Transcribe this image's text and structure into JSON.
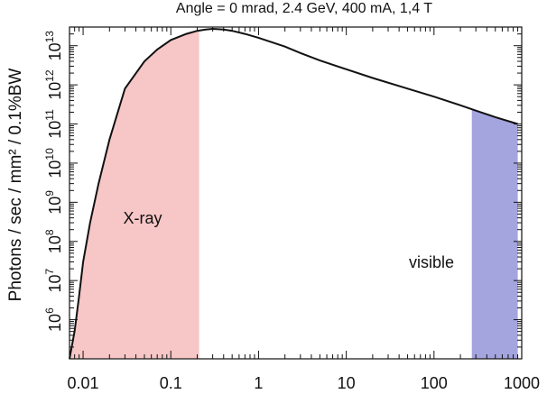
{
  "chart_data": {
    "type": "area",
    "title": "Angle = 0 mrad, 2.4 GeV, 400 mA, 1,4 T",
    "xlabel": "",
    "ylabel": "Photons / sec /  mm² / 0.1%BW",
    "x_scale": "log",
    "y_scale": "log",
    "xlim": [
      0.007,
      1000
    ],
    "ylim": [
      100000,
      30000000000000
    ],
    "x_ticks": [
      {
        "value": 0.01,
        "label": "0.01"
      },
      {
        "value": 0.1,
        "label": "0.1"
      },
      {
        "value": 1,
        "label": "1"
      },
      {
        "value": 10,
        "label": "10"
      },
      {
        "value": 100,
        "label": "100"
      },
      {
        "value": 1000,
        "label": "1000"
      }
    ],
    "y_ticks": [
      {
        "value": 1000000,
        "base": "10",
        "exp": "6"
      },
      {
        "value": 10000000,
        "base": "10",
        "exp": "7"
      },
      {
        "value": 100000000,
        "base": "10",
        "exp": "8"
      },
      {
        "value": 1000000000,
        "base": "10",
        "exp": "9"
      },
      {
        "value": 10000000000,
        "base": "10",
        "exp": "10"
      },
      {
        "value": 100000000000,
        "base": "10",
        "exp": "11"
      },
      {
        "value": 1000000000000,
        "base": "10",
        "exp": "12"
      },
      {
        "value": 10000000000000,
        "base": "10",
        "exp": "13"
      }
    ],
    "grid": false,
    "series": [
      {
        "x": [
          0.007,
          0.008,
          0.009,
          0.01,
          0.012,
          0.015,
          0.02,
          0.03,
          0.05,
          0.07,
          0.1,
          0.15,
          0.2,
          0.25,
          0.3,
          0.4,
          0.5,
          0.7,
          1,
          2,
          3,
          5,
          10,
          20,
          50,
          100,
          200,
          300,
          500,
          900
        ],
        "y": [
          100000,
          500000,
          4000000,
          30000000,
          300000000,
          3000000000,
          40000000000,
          800000000000,
          4000000000000,
          8000000000000,
          14000000000000,
          20000000000000,
          24000000000000,
          26000000000000,
          27000000000000,
          26000000000000,
          24000000000000,
          20000000000000,
          16000000000000,
          9500000000000,
          6500000000000,
          4200000000000,
          2500000000000,
          1500000000000,
          800000000000,
          500000000000,
          300000000000,
          220000000000,
          150000000000,
          100000000000
        ]
      }
    ],
    "regions": [
      {
        "label": "X-ray",
        "x_range": [
          0.007,
          0.21
        ],
        "color": "#f7c6c6"
      },
      {
        "label": "visible",
        "x_range": [
          270,
          900
        ],
        "color": "#a4a4df"
      }
    ],
    "line_color": "#111111"
  }
}
